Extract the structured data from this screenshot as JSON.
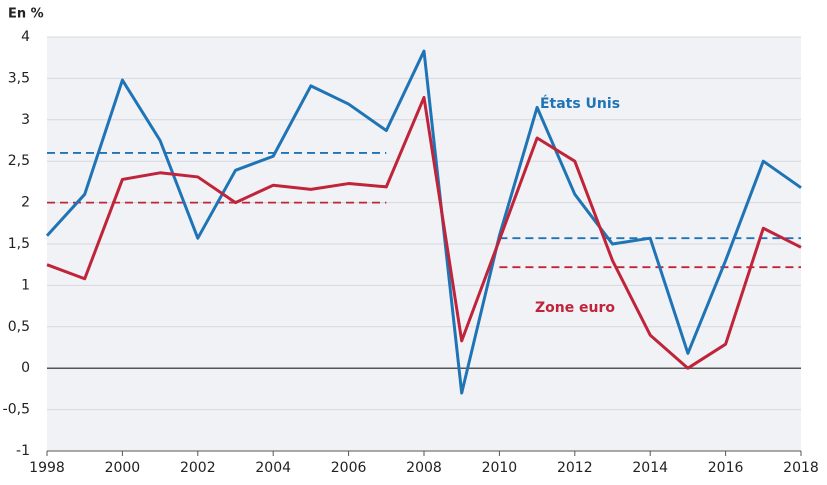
{
  "chart_data": {
    "type": "line",
    "y_label": "En %",
    "x": [
      1998,
      1999,
      2000,
      2001,
      2002,
      2003,
      2004,
      2005,
      2006,
      2007,
      2008,
      2009,
      2010,
      2011,
      2012,
      2013,
      2014,
      2015,
      2016,
      2017,
      2018
    ],
    "series": [
      {
        "name": "États Unis",
        "color": "#1f74b6",
        "values": [
          1.6,
          2.1,
          3.48,
          2.75,
          1.57,
          2.39,
          2.56,
          3.41,
          3.19,
          2.87,
          3.83,
          -0.3,
          1.6,
          3.15,
          2.1,
          1.5,
          1.57,
          0.18,
          1.3,
          2.5,
          2.18
        ]
      },
      {
        "name": "Zone euro",
        "color": "#c0243a",
        "values": [
          1.25,
          1.08,
          2.28,
          2.36,
          2.31,
          2.0,
          2.21,
          2.16,
          2.23,
          2.19,
          3.27,
          0.33,
          1.55,
          2.78,
          2.5,
          1.3,
          0.4,
          0.0,
          0.29,
          1.69,
          1.46
        ]
      }
    ],
    "reference_lines": [
      {
        "x": [
          1998,
          2007
        ],
        "value": 2.6,
        "color": "#1f74b6"
      },
      {
        "x": [
          1998,
          2007
        ],
        "value": 2.0,
        "color": "#c0243a"
      },
      {
        "x": [
          2010,
          2018
        ],
        "value": 1.57,
        "color": "#1f74b6"
      },
      {
        "x": [
          2010,
          2018
        ],
        "value": 1.22,
        "color": "#c0243a"
      }
    ],
    "xlim": [
      1998,
      2018
    ],
    "xticks": [
      1998,
      2000,
      2002,
      2004,
      2006,
      2008,
      2010,
      2012,
      2014,
      2016,
      2018
    ],
    "ylim": [
      -1,
      4
    ],
    "yticks": [
      -1,
      {
        "value": -0.5,
        "label": "-0,5"
      },
      0,
      {
        "value": 0.5,
        "label": "0,5"
      },
      1,
      {
        "value": 1.5,
        "label": "1,5"
      },
      2,
      {
        "value": 2.5,
        "label": "2,5"
      },
      3,
      {
        "value": 3.5,
        "label": "3,5"
      },
      4
    ],
    "grid": true
  }
}
